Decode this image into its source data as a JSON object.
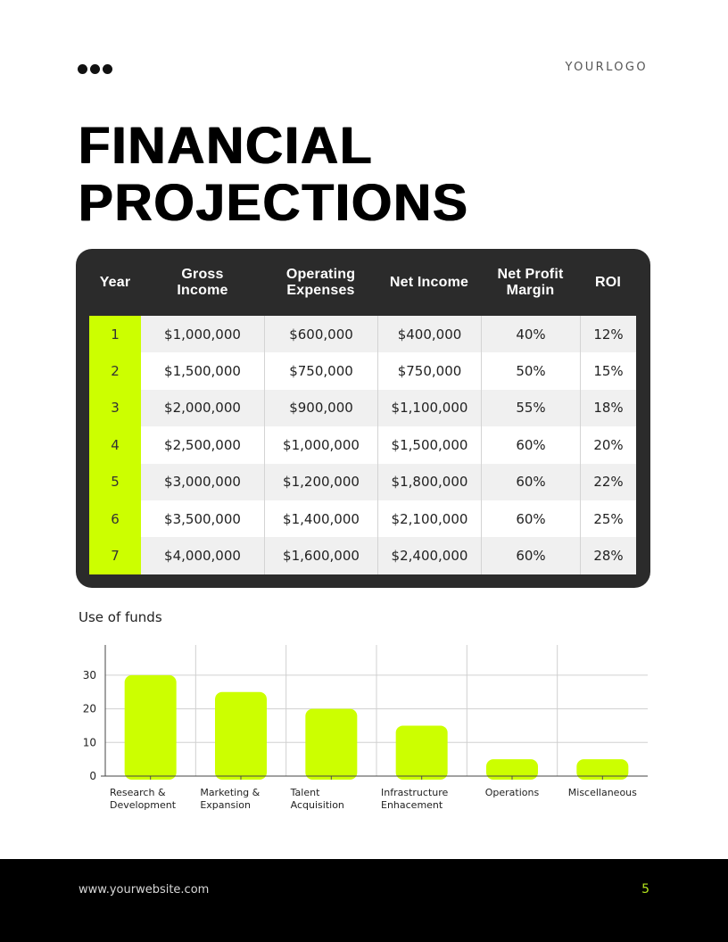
{
  "header": {
    "menu_icon": "three-dots-icon",
    "logo": "YOURLOGO"
  },
  "title": {
    "line1": "FINANCIAL",
    "line2": "PROJECTIONS"
  },
  "table": {
    "columns": [
      "Year",
      "Gross\nIncome",
      "Operating\nExpenses",
      "Net Income",
      "Net Profit\nMargin",
      "ROI"
    ],
    "column_lines": [
      [
        "Year"
      ],
      [
        "Gross",
        "Income"
      ],
      [
        "Operating",
        "Expenses"
      ],
      [
        "Net Income"
      ],
      [
        "Net Profit",
        "Margin"
      ],
      [
        "ROI"
      ]
    ],
    "rows": [
      [
        "1",
        "$1,000,000",
        "$600,000",
        "$400,000",
        "40%",
        "12%"
      ],
      [
        "2",
        "$1,500,000",
        "$750,000",
        "$750,000",
        "50%",
        "15%"
      ],
      [
        "3",
        "$2,000,000",
        "$900,000",
        "$1,100,000",
        "55%",
        "18%"
      ],
      [
        "4",
        "$2,500,000",
        "$1,000,000",
        "$1,500,000",
        "60%",
        "20%"
      ],
      [
        "5",
        "$3,000,000",
        "$1,200,000",
        "$1,800,000",
        "60%",
        "22%"
      ],
      [
        "6",
        "$3,500,000",
        "$1,400,000",
        "$2,100,000",
        "60%",
        "25%"
      ],
      [
        "7",
        "$4,000,000",
        "$1,600,000",
        "$2,400,000",
        "60%",
        "28%"
      ]
    ],
    "colors": {
      "card": "#2b2b2b",
      "accent": "#ccff00",
      "row_alt": "#f0f0f0"
    }
  },
  "chart": {
    "title": "Use of funds"
  },
  "chart_data": {
    "type": "bar",
    "title": "Use of funds",
    "categories": [
      "Research & Development",
      "Marketing & Expansion",
      "Talent Acquisition",
      "Infrastructure Enhacement",
      "Operations",
      "Miscellaneous"
    ],
    "category_lines": [
      [
        "Research &",
        "Development"
      ],
      [
        "Marketing &",
        "Expansion"
      ],
      [
        "Talent",
        "Acquisition"
      ],
      [
        "Infrastructure",
        "Enhacement"
      ],
      [
        "Operations"
      ],
      [
        "Miscellaneous"
      ]
    ],
    "values": [
      30,
      25,
      20,
      15,
      5,
      5
    ],
    "xlabel": "",
    "ylabel": "",
    "ylim": [
      0,
      39
    ],
    "yticks": [
      0,
      10,
      20,
      30
    ],
    "grid": true,
    "legend": null,
    "bar_color": "#ccff00"
  },
  "footer": {
    "website": "www.yourwebsite.com",
    "page_number": "5",
    "page_color": "#b5e61d"
  }
}
